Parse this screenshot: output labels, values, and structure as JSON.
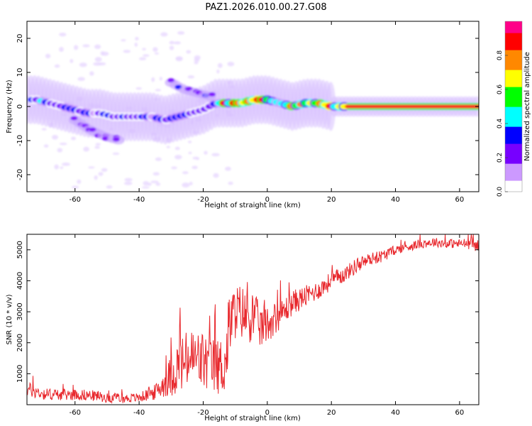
{
  "title": "PAZ1.2026.010.00.27.G08",
  "chart_data": [
    {
      "type": "heatmap",
      "title": "PAZ1.2026.010.00.27.G08",
      "xlabel": "Height of straight line (km)",
      "ylabel": "Frequency (Hz)",
      "xlim": [
        -75,
        66
      ],
      "ylim": [
        -25,
        25
      ],
      "xticks": [
        -60,
        -40,
        -20,
        0,
        20,
        40,
        60
      ],
      "yticks": [
        -20,
        -10,
        0,
        10,
        20
      ],
      "colorbar": {
        "label": "Normalized spectral amplitude",
        "range": [
          0,
          1
        ],
        "ticks": [
          "0.0",
          "0.2",
          "0.4",
          "0.6",
          "0.8"
        ],
        "colors": [
          "#ffffff",
          "#cc99ff",
          "#7700ff",
          "#0000ff",
          "#00ffff",
          "#00ff00",
          "#ffff00",
          "#ff8800",
          "#ff0000",
          "#ff0088"
        ]
      },
      "ridge": [
        {
          "x": -72,
          "y": 2
        },
        {
          "x": -68,
          "y": 1
        },
        {
          "x": -64,
          "y": 0
        },
        {
          "x": -60,
          "y": -1
        },
        {
          "x": -56,
          "y": -2
        },
        {
          "x": -52,
          "y": -2
        },
        {
          "x": -48,
          "y": -3
        },
        {
          "x": -44,
          "y": -3
        },
        {
          "x": -40,
          "y": -3
        },
        {
          "x": -36,
          "y": -3
        },
        {
          "x": -32,
          "y": -4
        },
        {
          "x": -28,
          "y": -3
        },
        {
          "x": -24,
          "y": -2
        },
        {
          "x": -20,
          "y": -1
        },
        {
          "x": -16,
          "y": 1
        },
        {
          "x": -12,
          "y": 1
        },
        {
          "x": -8,
          "y": 1
        },
        {
          "x": -4,
          "y": 2
        },
        {
          "x": 0,
          "y": 2
        },
        {
          "x": 4,
          "y": 1
        },
        {
          "x": 8,
          "y": 0
        },
        {
          "x": 12,
          "y": 1
        },
        {
          "x": 16,
          "y": 1
        },
        {
          "x": 20,
          "y": 0
        },
        {
          "x": 30,
          "y": 0
        },
        {
          "x": 40,
          "y": 0
        },
        {
          "x": 50,
          "y": 0
        },
        {
          "x": 60,
          "y": 0
        },
        {
          "x": 66,
          "y": 0
        }
      ],
      "branches": [
        {
          "points": [
            {
              "x": -60,
              "y": -4
            },
            {
              "x": -55,
              "y": -7
            },
            {
              "x": -50,
              "y": -9
            },
            {
              "x": -46,
              "y": -10
            }
          ]
        },
        {
          "points": [
            {
              "x": -30,
              "y": 7
            },
            {
              "x": -26,
              "y": 5
            },
            {
              "x": -22,
              "y": 4
            },
            {
              "x": -18,
              "y": 3
            }
          ]
        }
      ]
    },
    {
      "type": "line",
      "xlabel": "Height of straight line (km)",
      "ylabel": "SNR (10 * v/v)",
      "xlim": [
        -75,
        66
      ],
      "ylim": [
        0,
        5500
      ],
      "xticks": [
        -60,
        -40,
        -20,
        0,
        20,
        40,
        60
      ],
      "yticks": [
        1000,
        2000,
        3000,
        4000,
        5000
      ],
      "series": [
        {
          "name": "SNR",
          "color": "#e8282d",
          "x": [
            -75,
            -70,
            -65,
            -60,
            -55,
            -50,
            -45,
            -40,
            -35,
            -32,
            -28,
            -24,
            -20,
            -16,
            -13,
            -12,
            -10,
            -8,
            -6,
            -4,
            -2,
            0,
            4,
            8,
            12,
            16,
            20,
            24,
            28,
            32,
            36,
            40,
            44,
            48,
            52,
            56,
            60,
            64,
            66
          ],
          "y": [
            500,
            350,
            320,
            330,
            300,
            220,
            200,
            230,
            400,
            700,
            1200,
            1500,
            1400,
            1200,
            1300,
            2500,
            3000,
            3000,
            2800,
            2800,
            2500,
            2600,
            2900,
            3300,
            3500,
            3700,
            4000,
            4200,
            4500,
            4700,
            4800,
            5000,
            5100,
            5200,
            5250,
            5200,
            5200,
            5200,
            5100
          ],
          "noise": [
            250,
            200,
            180,
            180,
            180,
            150,
            150,
            150,
            250,
            450,
            900,
            1000,
            1000,
            900,
            1000,
            1100,
            900,
            900,
            800,
            800,
            700,
            600,
            450,
            400,
            350,
            300,
            300,
            250,
            250,
            200,
            200,
            150,
            150,
            150,
            150,
            150,
            150,
            200,
            200
          ]
        }
      ]
    }
  ]
}
